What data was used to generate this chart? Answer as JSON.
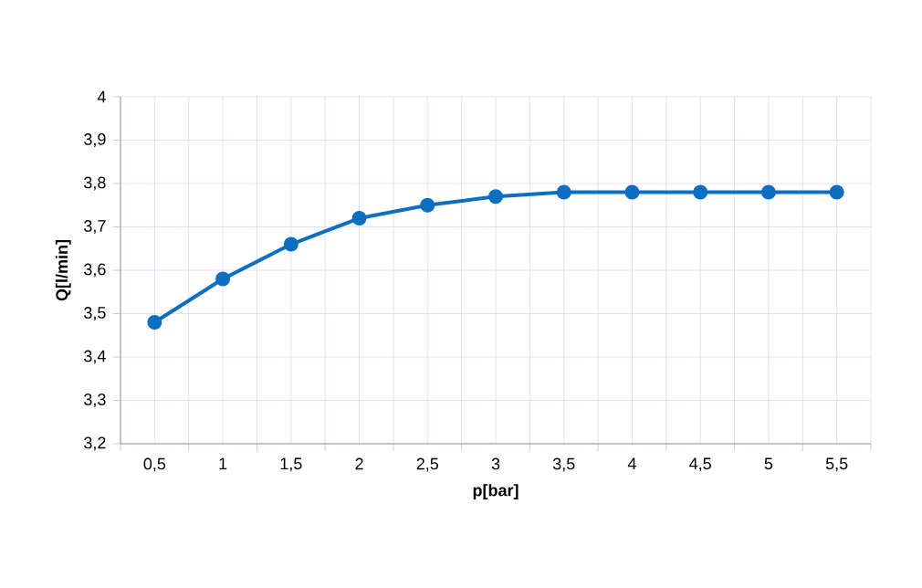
{
  "chart_data": {
    "type": "line",
    "xlabel": "p[bar]",
    "ylabel": "Q[l/min]",
    "categories": [
      "0,5",
      "1",
      "1,5",
      "2",
      "2,5",
      "3",
      "3,5",
      "4",
      "4,5",
      "5",
      "5,5"
    ],
    "series": [
      {
        "color": "#0e6fc1",
        "values": [
          3.48,
          3.58,
          3.66,
          3.72,
          3.75,
          3.77,
          3.78,
          3.78,
          3.78,
          3.78,
          3.78
        ]
      }
    ],
    "ylim": [
      3.2,
      4
    ],
    "yticks": [
      {
        "value": 3.2,
        "label": "3,2"
      },
      {
        "value": 3.3,
        "label": "3,3"
      },
      {
        "value": 3.4,
        "label": "3,4"
      },
      {
        "value": 3.5,
        "label": "3,5"
      },
      {
        "value": 3.6,
        "label": "3,6"
      },
      {
        "value": 3.7,
        "label": "3,7"
      },
      {
        "value": 3.8,
        "label": "3,8"
      },
      {
        "value": 3.9,
        "label": "3,9"
      },
      {
        "value": 4,
        "label": "4"
      }
    ],
    "grid": true,
    "marker": "circle",
    "line_style": "solid"
  }
}
